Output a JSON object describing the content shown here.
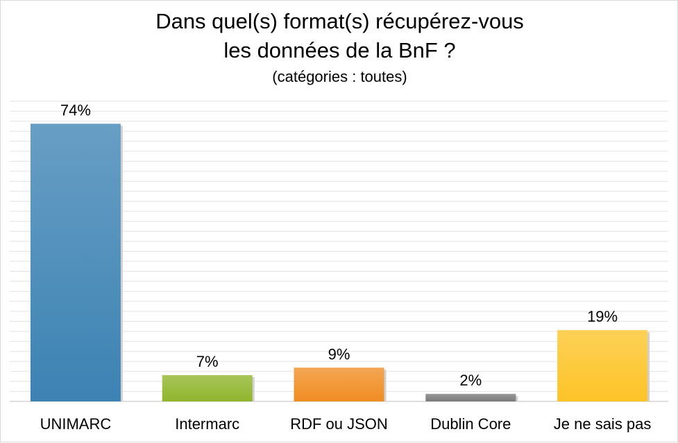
{
  "title_line1": "Dans quel(s) format(s) récupérez-vous",
  "title_line2": "les données de la BnF ?",
  "subtitle": "(catégories : toutes)",
  "chart_data": {
    "type": "bar",
    "title": "Dans quel(s) format(s) récupérez-vous les données de la BnF ?",
    "subtitle": "(catégories : toutes)",
    "categories": [
      "UNIMARC",
      "Intermarc",
      "RDF ou JSON",
      "Dublin Core",
      "Je ne sais pas"
    ],
    "values": [
      74,
      7,
      9,
      2,
      19
    ],
    "data_labels": [
      "74%",
      "7%",
      "9%",
      "2%",
      "19%"
    ],
    "colors": [
      "#3c82b3",
      "#8fb52c",
      "#f08d23",
      "#7a7a7a",
      "#fdc427"
    ],
    "ylim": [
      0,
      80
    ],
    "unit": "%",
    "grid": true,
    "legend": "none"
  }
}
